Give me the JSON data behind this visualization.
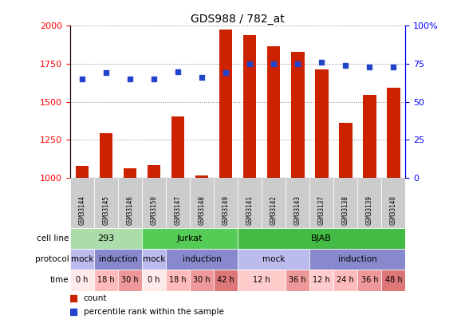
{
  "title": "GDS988 / 782_at",
  "samples": [
    "GSM33144",
    "GSM33145",
    "GSM33146",
    "GSM33150",
    "GSM33147",
    "GSM33148",
    "GSM33149",
    "GSM33141",
    "GSM33142",
    "GSM33143",
    "GSM33137",
    "GSM33138",
    "GSM33139",
    "GSM33140"
  ],
  "counts": [
    1075,
    1295,
    1060,
    1085,
    1405,
    1015,
    1975,
    1940,
    1865,
    1830,
    1715,
    1360,
    1545,
    1590
  ],
  "percentile": [
    65,
    69,
    65,
    65,
    70,
    66,
    69,
    75,
    75,
    75,
    76,
    74,
    73,
    73
  ],
  "ylim_left": [
    1000,
    2000
  ],
  "ylim_right": [
    0,
    100
  ],
  "yticks_left": [
    1000,
    1250,
    1500,
    1750,
    2000
  ],
  "yticks_right": [
    0,
    25,
    50,
    75,
    100
  ],
  "bar_color": "#cc2200",
  "dot_color": "#2244cc",
  "cell_lines": [
    {
      "label": "293",
      "start": 0,
      "end": 3,
      "color": "#aaddaa"
    },
    {
      "label": "Jurkat",
      "start": 3,
      "end": 7,
      "color": "#55cc55"
    },
    {
      "label": "BJAB",
      "start": 7,
      "end": 14,
      "color": "#44bb44"
    }
  ],
  "protocols": [
    {
      "label": "mock",
      "start": 0,
      "end": 1,
      "color": "#bbbbee"
    },
    {
      "label": "induction",
      "start": 1,
      "end": 3,
      "color": "#8888cc"
    },
    {
      "label": "mock",
      "start": 3,
      "end": 4,
      "color": "#bbbbee"
    },
    {
      "label": "induction",
      "start": 4,
      "end": 7,
      "color": "#8888cc"
    },
    {
      "label": "mock",
      "start": 7,
      "end": 10,
      "color": "#bbbbee"
    },
    {
      "label": "induction",
      "start": 10,
      "end": 14,
      "color": "#8888cc"
    }
  ],
  "times": [
    {
      "label": "0 h",
      "start": 0,
      "end": 1,
      "color": "#ffeaea"
    },
    {
      "label": "18 h",
      "start": 1,
      "end": 2,
      "color": "#ffbbbb"
    },
    {
      "label": "30 h",
      "start": 2,
      "end": 3,
      "color": "#ee9999"
    },
    {
      "label": "0 h",
      "start": 3,
      "end": 4,
      "color": "#ffeaea"
    },
    {
      "label": "18 h",
      "start": 4,
      "end": 5,
      "color": "#ffbbbb"
    },
    {
      "label": "30 h",
      "start": 5,
      "end": 6,
      "color": "#ee9999"
    },
    {
      "label": "42 h",
      "start": 6,
      "end": 7,
      "color": "#dd7777"
    },
    {
      "label": "12 h",
      "start": 7,
      "end": 9,
      "color": "#ffcccc"
    },
    {
      "label": "36 h",
      "start": 9,
      "end": 10,
      "color": "#ee9999"
    },
    {
      "label": "12 h",
      "start": 10,
      "end": 11,
      "color": "#ffcccc"
    },
    {
      "label": "24 h",
      "start": 11,
      "end": 12,
      "color": "#ffbbbb"
    },
    {
      "label": "36 h",
      "start": 12,
      "end": 13,
      "color": "#ee9999"
    },
    {
      "label": "48 h",
      "start": 13,
      "end": 14,
      "color": "#dd7777"
    }
  ],
  "legend_items": [
    {
      "label": "count",
      "color": "#cc2200"
    },
    {
      "label": "percentile rank within the sample",
      "color": "#2244cc"
    }
  ],
  "row_labels": [
    "cell line",
    "protocol",
    "time"
  ],
  "sample_bg": "#cccccc",
  "bg_color": "#ffffff",
  "grid_color": "#888888"
}
